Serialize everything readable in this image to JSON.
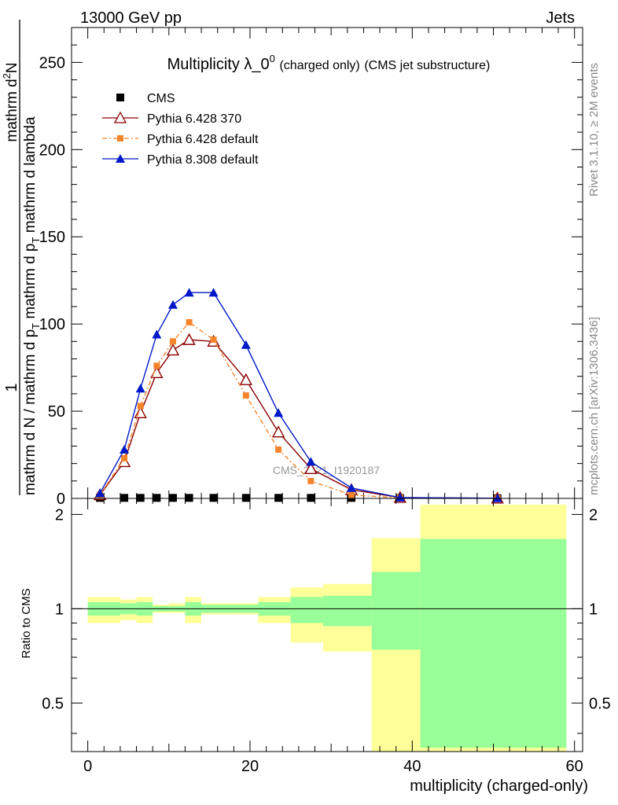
{
  "header": {
    "left": "13000 GeV pp",
    "right": "Jets"
  },
  "side_labels": {
    "rivet": "Rivet 3.1.10, ≥ 2M events",
    "mcplots": "mcplots.cern.ch [arXiv:1306.3436]"
  },
  "watermark": "CMS_2021_I1920187",
  "chart_data": [
    {
      "type": "line",
      "title_main": "Multiplicity λ_0",
      "title_sup": "0",
      "title_small": "(charged only)",
      "title_tail": "(CMS jet substructure)",
      "ylabel_parts": [
        "1",
        "mathrm d N / mathrm d p",
        "T",
        "mathrm d p",
        "T",
        "mathrm d lambda",
        "mathrm d",
        "2",
        "N"
      ],
      "ylim": [
        0,
        270
      ],
      "xlim": [
        -2,
        61
      ],
      "yticks": [
        0,
        50,
        100,
        150,
        200,
        250
      ],
      "ytick_labels": [
        "0",
        "50",
        "100",
        "150",
        "200",
        "250"
      ],
      "legend": [
        {
          "name": "CMS",
          "color": "#000000",
          "marker": "square"
        },
        {
          "name": "Pythia 6.428 370",
          "color": "#8b0000",
          "marker": "triangle-open"
        },
        {
          "name": "Pythia 6.428 default",
          "color": "#f4842c",
          "marker": "square-small"
        },
        {
          "name": "Pythia 8.308 default",
          "color": "#0018c8",
          "marker": "triangle"
        }
      ],
      "x": [
        1.5,
        4.5,
        6.5,
        8.5,
        10.5,
        12.5,
        15.5,
        19.5,
        23.5,
        27.5,
        32.5,
        38.5,
        50.5
      ],
      "series": [
        {
          "name": "CMS",
          "values": [
            0.3,
            0.3,
            0.3,
            0.3,
            0.3,
            0.3,
            0.3,
            0.3,
            0.3,
            0.3,
            0.3,
            0.1,
            0.05
          ]
        },
        {
          "name": "Pythia 6.428 370",
          "values": [
            2,
            21,
            49,
            72,
            85,
            91,
            90,
            68,
            38,
            17,
            5,
            0.5,
            0.1
          ]
        },
        {
          "name": "Pythia 6.428 default",
          "values": [
            2,
            23,
            53,
            76,
            90,
            101,
            91,
            59,
            28,
            10,
            2,
            0.2,
            0.05
          ]
        },
        {
          "name": "Pythia 8.308 default",
          "values": [
            3,
            28,
            63,
            94,
            111,
            118,
            118,
            88,
            49,
            21,
            6,
            0.5,
            0.1
          ]
        }
      ]
    },
    {
      "type": "area",
      "ylabel": "Ratio to CMS",
      "xlabel": "multiplicity (charged-only)",
      "ylim": [
        0.35,
        2.25
      ],
      "xlim": [
        -2,
        61
      ],
      "yticks": [
        0.5,
        1,
        2
      ],
      "ytick_labels": [
        "0.5",
        "1",
        "2"
      ],
      "xticks": [
        0,
        20,
        40,
        60
      ],
      "xtick_labels": [
        "0",
        "20",
        "40",
        "60"
      ],
      "reference_line": 1,
      "bins": [
        {
          "x0": 0,
          "x1": 4,
          "inner": [
            0.95,
            1.05
          ],
          "outer": [
            0.9,
            1.09
          ]
        },
        {
          "x0": 4,
          "x1": 6,
          "inner": [
            0.96,
            1.04
          ],
          "outer": [
            0.92,
            1.07
          ]
        },
        {
          "x0": 6,
          "x1": 8,
          "inner": [
            0.95,
            1.05
          ],
          "outer": [
            0.9,
            1.09
          ]
        },
        {
          "x0": 8,
          "x1": 10,
          "inner": [
            0.98,
            1.02
          ],
          "outer": [
            0.97,
            1.03
          ]
        },
        {
          "x0": 10,
          "x1": 12,
          "inner": [
            0.98,
            1.02
          ],
          "outer": [
            0.97,
            1.04
          ]
        },
        {
          "x0": 12,
          "x1": 14,
          "inner": [
            0.95,
            1.05
          ],
          "outer": [
            0.9,
            1.09
          ]
        },
        {
          "x0": 14,
          "x1": 18,
          "inner": [
            0.97,
            1.03
          ],
          "outer": [
            0.96,
            1.04
          ]
        },
        {
          "x0": 18,
          "x1": 21,
          "inner": [
            0.97,
            1.03
          ],
          "outer": [
            0.96,
            1.04
          ]
        },
        {
          "x0": 21,
          "x1": 25,
          "inner": [
            0.95,
            1.05
          ],
          "outer": [
            0.9,
            1.09
          ]
        },
        {
          "x0": 25,
          "x1": 29,
          "inner": [
            0.9,
            1.09
          ],
          "outer": [
            0.78,
            1.17
          ]
        },
        {
          "x0": 29,
          "x1": 35,
          "inner": [
            0.88,
            1.1
          ],
          "outer": [
            0.73,
            1.2
          ]
        },
        {
          "x0": 35,
          "x1": 41,
          "inner": [
            0.74,
            1.31
          ],
          "outer": [
            0.35,
            1.68
          ]
        },
        {
          "x0": 41,
          "x1": 59,
          "inner": [
            0.36,
            1.67
          ],
          "outer": [
            0.35,
            2.15
          ]
        }
      ]
    }
  ]
}
